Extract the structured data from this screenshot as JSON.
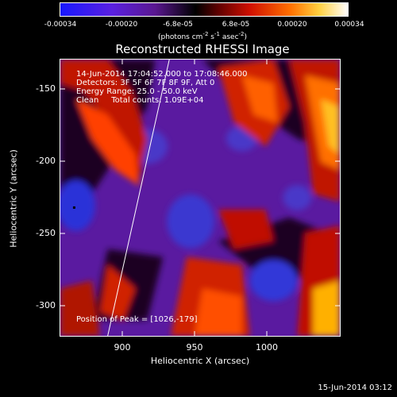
{
  "colorbar": {
    "tick_labels": [
      "-0.00034",
      "-0.00020",
      "-6.8e-05",
      "6.8e-05",
      "0.00020",
      "0.00034"
    ],
    "units_main": "(photons cm",
    "units_exp1": "-2",
    "units_mid1": " s",
    "units_exp2": "-1",
    "units_mid2": " asec",
    "units_exp3": "-2",
    "units_end": ")",
    "colors": [
      "#2020ff",
      "#6a20d0",
      "#4a1070",
      "#000000",
      "#a01010",
      "#ff5000",
      "#ffb000",
      "#ffffff"
    ]
  },
  "title": "Reconstructed RHESSI Image",
  "info": {
    "line1": "14-Jun-2014 17:04:52.000 to 17:08:46.000",
    "line2": "Detectors: 3F 5F 6F 7F 8F 9F, Att 0",
    "line3": "Energy Range: 25.0 - 50.0 keV",
    "line4": "Clean     Total counts: 1.09E+04"
  },
  "peak": "Position of Peak = [1026,-179]",
  "axes": {
    "xlabel": "Heliocentric X (arcsec)",
    "ylabel": "Heliocentric Y (arcsec)",
    "x_ticks": [
      "900",
      "950",
      "1000"
    ],
    "y_ticks": [
      "-150",
      "-200",
      "-250",
      "-300"
    ]
  },
  "footer": "15-Jun-2014 03:12"
}
